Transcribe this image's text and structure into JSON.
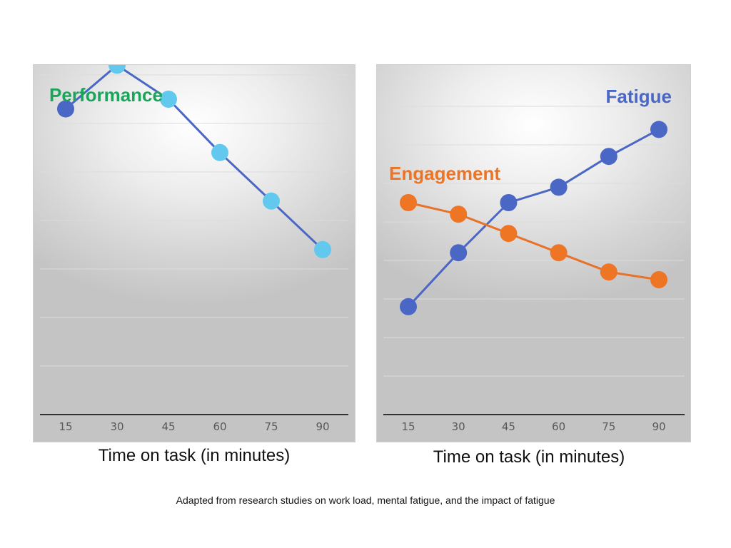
{
  "chart_data": [
    {
      "type": "line",
      "categories": [
        "15",
        "30",
        "45",
        "60",
        "75",
        "90"
      ],
      "series": [
        {
          "name": "Performance",
          "values": [
            63,
            72,
            65,
            54,
            44,
            34
          ],
          "line_color": "#4a67c6",
          "marker_colors": [
            "#4a67c6",
            "#62c8ee",
            "#62c8ee",
            "#62c8ee",
            "#62c8ee",
            "#62c8ee"
          ],
          "label_color": "#1aa55a"
        }
      ],
      "xlabel": "Time on task (in minutes)",
      "ylabel": "",
      "ylim": [
        0,
        80
      ],
      "grid": true,
      "y_tick_labels_shown": false
    },
    {
      "type": "line",
      "categories": [
        "15",
        "30",
        "45",
        "60",
        "75",
        "90"
      ],
      "series": [
        {
          "name": "Fatigue",
          "values": [
            28,
            42,
            55,
            59,
            67,
            74
          ],
          "line_color": "#4a67c6",
          "marker_colors": [
            "#4a67c6",
            "#4a67c6",
            "#4a67c6",
            "#4a67c6",
            "#4a67c6",
            "#4a67c6"
          ],
          "label_color": "#4a67c6"
        },
        {
          "name": "Engagement",
          "values": [
            55,
            52,
            47,
            42,
            37,
            35
          ],
          "line_color": "#e8722a",
          "marker_colors": [
            "#ee7524",
            "#ee7524",
            "#ee7524",
            "#ee7524",
            "#ee7524",
            "#ee7524"
          ],
          "label_color": "#ec7424"
        }
      ],
      "xlabel": "Time on task (in minutes)",
      "ylabel": "",
      "ylim": [
        0,
        80
      ],
      "grid": true,
      "y_tick_labels_shown": false
    }
  ],
  "footnote": "Adapted from research studies on work load, mental fatigue, and the impact of fatigue"
}
